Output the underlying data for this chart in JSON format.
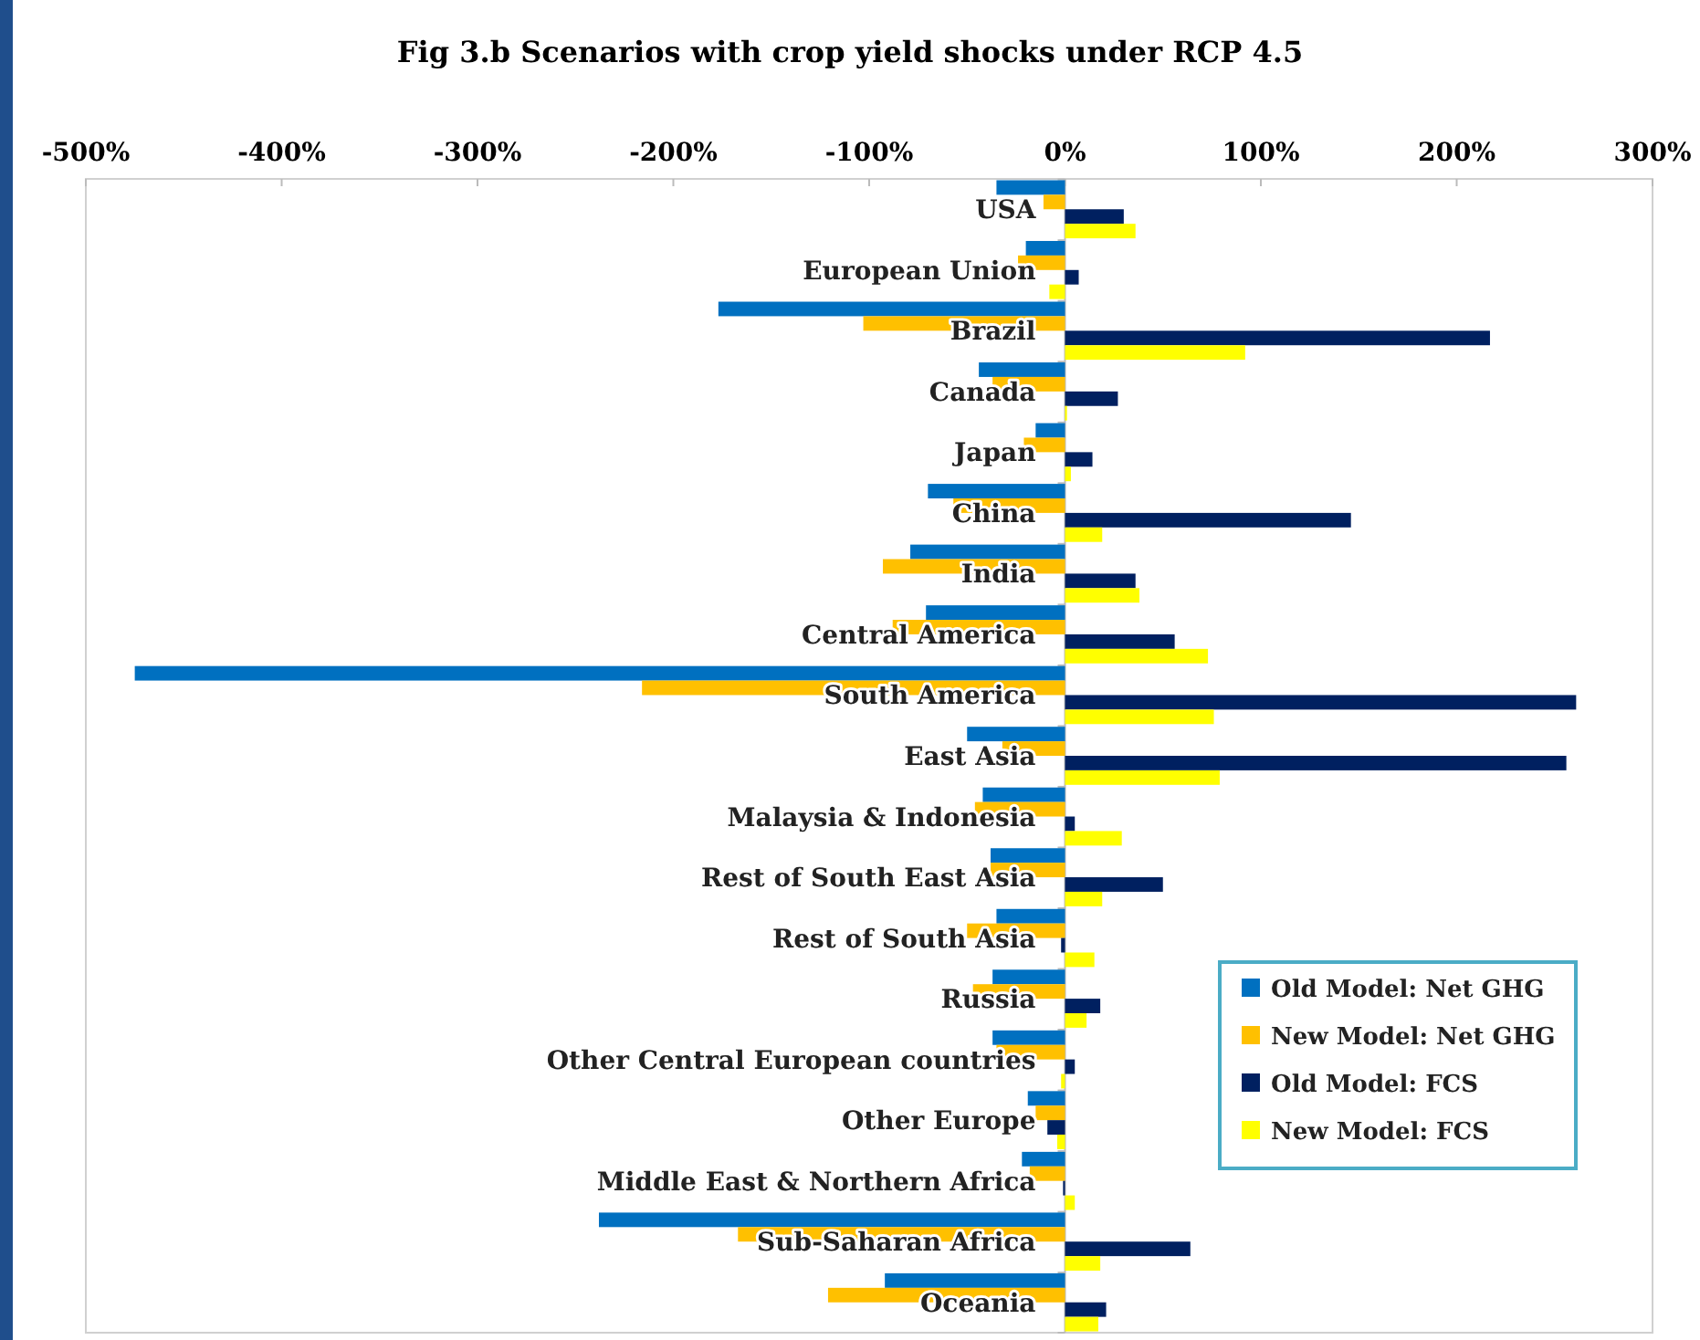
{
  "chart_data": {
    "type": "bar",
    "orientation": "horizontal",
    "title": "Fig 3.b Scenarios with crop yield shocks under RCP 4.5",
    "categories": [
      "USA",
      "European Union",
      "Brazil",
      "Canada",
      "Japan",
      "China",
      "India",
      "Central America",
      "South America",
      "East Asia",
      "Malaysia & Indonesia",
      "Rest of South East Asia",
      "Rest of South Asia",
      "Russia",
      "Other Central European countries",
      "Other Europe",
      "Middle East & Northern Africa",
      "Sub-Saharan Africa",
      "Oceania"
    ],
    "series": [
      {
        "name": "Old Model: Net GHG",
        "color": "#0070c0",
        "values": [
          -35,
          -20,
          -177,
          -44,
          -15,
          -70,
          -79,
          -71,
          -475,
          -50,
          -42,
          -38,
          -35,
          -37,
          -37,
          -19,
          -22,
          -238,
          -92
        ]
      },
      {
        "name": "New Model: Net GHG",
        "color": "#ffc000",
        "values": [
          -11,
          -24,
          -103,
          -37,
          -21,
          -57,
          -93,
          -88,
          -216,
          -32,
          -46,
          -38,
          -50,
          -47,
          -35,
          -15,
          -18,
          -167,
          -121
        ]
      },
      {
        "name": "Old Model: FCS",
        "color": "#002060",
        "values": [
          30,
          7,
          217,
          27,
          14,
          146,
          36,
          56,
          261,
          256,
          5,
          50,
          -2,
          18,
          5,
          -9,
          -1,
          64,
          21
        ]
      },
      {
        "name": "New Model: FCS",
        "color": "#ffff00",
        "values": [
          36,
          -8,
          92,
          1,
          3,
          19,
          38,
          73,
          76,
          79,
          29,
          19,
          15,
          11,
          -2,
          -4,
          5,
          18,
          17
        ]
      }
    ],
    "xlim": [
      -500,
      300
    ],
    "xticks": [
      {
        "value": -500,
        "label": "-500%"
      },
      {
        "value": -400,
        "label": "-400%"
      },
      {
        "value": -300,
        "label": "-300%"
      },
      {
        "value": -200,
        "label": "-200%"
      },
      {
        "value": -100,
        "label": "-100%"
      },
      {
        "value": 0,
        "label": "0%"
      },
      {
        "value": 100,
        "label": "100%"
      },
      {
        "value": 200,
        "label": "200%"
      },
      {
        "value": 300,
        "label": "300%"
      }
    ],
    "grid": false,
    "legend": "bottom right"
  }
}
